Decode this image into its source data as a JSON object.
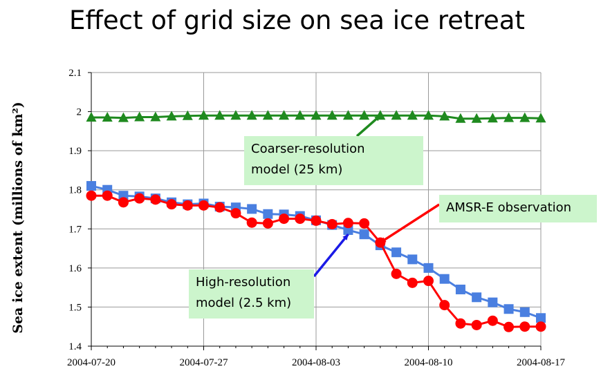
{
  "chart_data": {
    "type": "line",
    "title": "Effect of grid size on sea ice retreat",
    "ylabel": "Sea ice extent (millions of km²)",
    "xlabel": "",
    "ylim": [
      1.4,
      2.1
    ],
    "yticks": [
      "1.4",
      "1.5",
      "1.6",
      "1.7",
      "1.8",
      "1.9",
      "2",
      "2.1"
    ],
    "xlim": [
      "2004-07-20",
      "2004-08-17"
    ],
    "xticks": [
      "2004-07-20",
      "2004-07-27",
      "2004-08-03",
      "2004-08-10",
      "2004-08-17"
    ],
    "grid": true,
    "x": [
      "2004-07-20",
      "2004-07-21",
      "2004-07-22",
      "2004-07-23",
      "2004-07-24",
      "2004-07-25",
      "2004-07-26",
      "2004-07-27",
      "2004-07-28",
      "2004-07-29",
      "2004-07-30",
      "2004-07-31",
      "2004-08-01",
      "2004-08-02",
      "2004-08-03",
      "2004-08-04",
      "2004-08-05",
      "2004-08-06",
      "2004-08-07",
      "2004-08-08",
      "2004-08-09",
      "2004-08-10",
      "2004-08-11",
      "2004-08-12",
      "2004-08-13",
      "2004-08-14",
      "2004-08-15",
      "2004-08-16",
      "2004-08-17"
    ],
    "series": [
      {
        "marker": "triangle",
        "color": "#1f8a1f",
        "values": [
          1.985,
          1.985,
          1.984,
          1.986,
          1.986,
          1.988,
          1.989,
          1.99,
          1.99,
          1.99,
          1.99,
          1.99,
          1.99,
          1.99,
          1.99,
          1.99,
          1.99,
          1.99,
          1.99,
          1.99,
          1.99,
          1.99,
          1.988,
          1.982,
          1.982,
          1.983,
          1.984,
          1.984,
          1.983
        ]
      },
      {
        "marker": "square",
        "color": "#4a7fe0",
        "values": [
          1.81,
          1.8,
          1.785,
          1.783,
          1.778,
          1.768,
          1.763,
          1.765,
          1.757,
          1.755,
          1.751,
          1.738,
          1.737,
          1.733,
          1.722,
          1.71,
          1.697,
          1.686,
          1.658,
          1.64,
          1.622,
          1.6,
          1.572,
          1.545,
          1.525,
          1.512,
          1.495,
          1.487,
          1.472
        ]
      },
      {
        "marker": "circle",
        "color": "#ff0000",
        "values": [
          1.785,
          1.785,
          1.768,
          1.778,
          1.775,
          1.763,
          1.76,
          1.76,
          1.755,
          1.74,
          1.716,
          1.714,
          1.726,
          1.726,
          1.721,
          1.712,
          1.715,
          1.714,
          1.665,
          1.585,
          1.562,
          1.567,
          1.505,
          1.458,
          1.454,
          1.465,
          1.449,
          1.45,
          1.45
        ]
      }
    ],
    "annotations": [
      {
        "text_lines": [
          "Coarser-resolution",
          "model (25 km)"
        ],
        "arrow_color": "#1f8a1f",
        "target_x": "2004-08-07",
        "target_y": 1.99
      },
      {
        "text_lines": [
          "AMSR-E observation"
        ],
        "arrow_color": "#ff0000",
        "target_x": "2004-08-07",
        "target_y": 1.665
      },
      {
        "text_lines": [
          "High-resolution",
          "model (2.5 km)"
        ],
        "arrow_color": "#1a1ae6",
        "target_x": "2004-08-05",
        "target_y": 1.686
      }
    ]
  }
}
